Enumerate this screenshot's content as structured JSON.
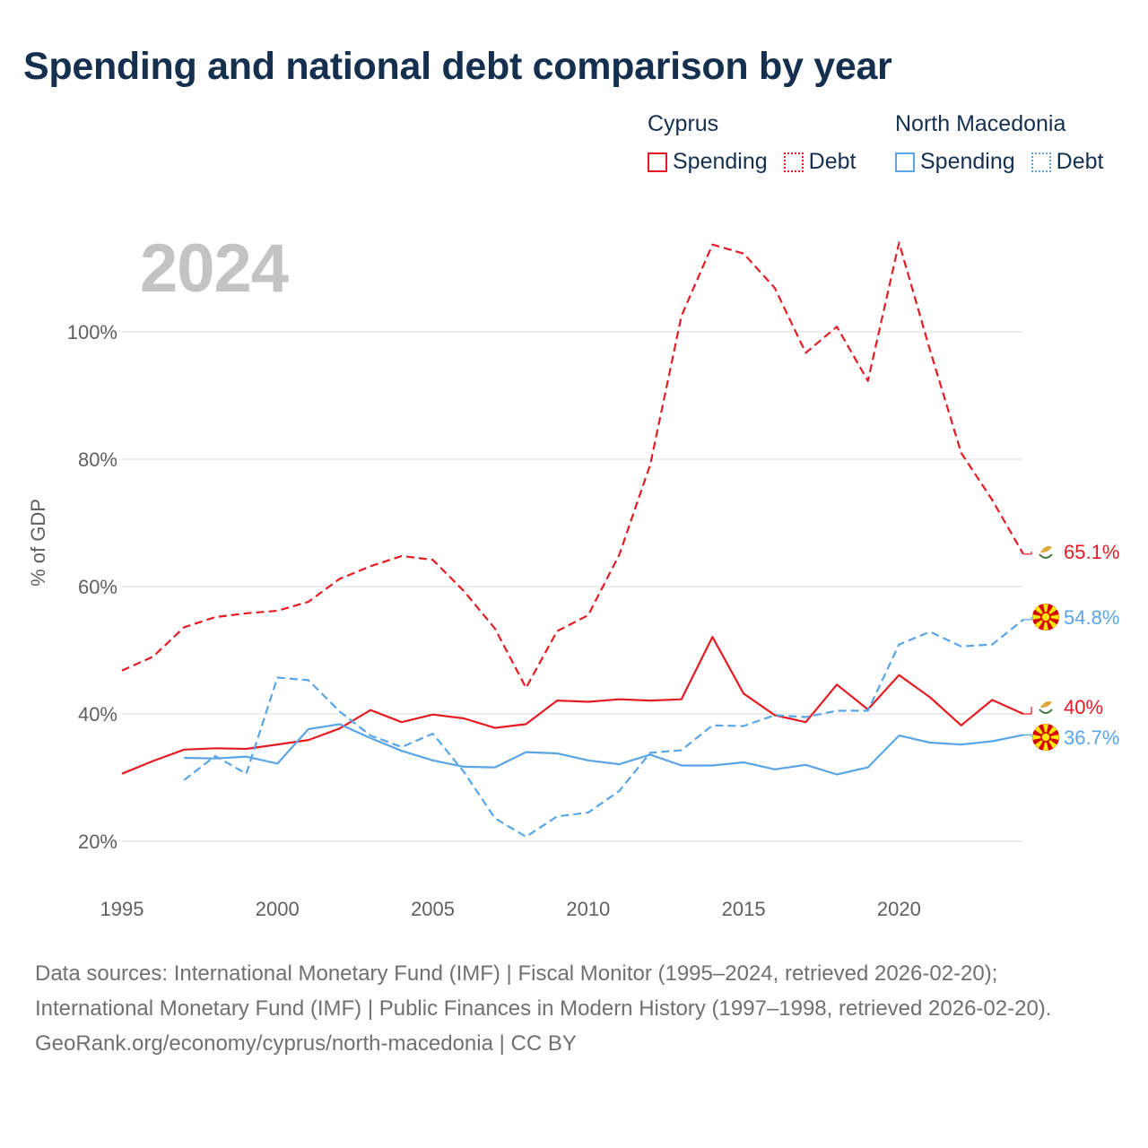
{
  "title": "Spending and national debt comparison by year",
  "year_label": "2024",
  "legend": [
    {
      "country": "Cyprus",
      "spending_label": "Spending",
      "debt_label": "Debt",
      "color": "#e31b23"
    },
    {
      "country": "North Macedonia",
      "spending_label": "Spending",
      "debt_label": "Debt",
      "color": "#5aa5e6"
    }
  ],
  "footer": {
    "sources": "Data sources: International Monetary Fund (IMF) | Fiscal Monitor (1995–2024, retrieved 2026-02-20); International Monetary Fund (IMF) | Public Finances in Modern History (1997–1998, retrieved 2026-02-20).",
    "credit": "GeoRank.org/economy/cyprus/north-macedonia | CC BY"
  },
  "chart_data": {
    "type": "line",
    "title": "Spending and national debt comparison by year",
    "xlabel": "",
    "ylabel": "% of GDP",
    "xlim": [
      1995,
      2024
    ],
    "ylim": [
      20,
      115
    ],
    "grid": true,
    "y_ticks": [
      {
        "value": 20,
        "label": "20%"
      },
      {
        "value": 40,
        "label": "40%"
      },
      {
        "value": 60,
        "label": "60%"
      },
      {
        "value": 80,
        "label": "80%"
      },
      {
        "value": 100,
        "label": "100%"
      }
    ],
    "x_ticks": [
      {
        "value": 1995,
        "label": "1995"
      },
      {
        "value": 2000,
        "label": "2000"
      },
      {
        "value": 2005,
        "label": "2005"
      },
      {
        "value": 2010,
        "label": "2010"
      },
      {
        "value": 2015,
        "label": "2015"
      },
      {
        "value": 2020,
        "label": "2020"
      }
    ],
    "series": [
      {
        "name": "Cyprus Debt",
        "country": "Cyprus",
        "color": "#e31b23",
        "dashed": true,
        "end_label": "65.1%",
        "end_icon": "cyprus-flag-icon",
        "x": [
          1995,
          1996,
          1997,
          1998,
          1999,
          2000,
          2001,
          2002,
          2003,
          2004,
          2005,
          2006,
          2007,
          2008,
          2009,
          2010,
          2011,
          2012,
          2013,
          2014,
          2015,
          2016,
          2017,
          2018,
          2019,
          2020,
          2021,
          2022,
          2023,
          2024
        ],
        "values": [
          46.8,
          49.0,
          53.6,
          55.2,
          55.8,
          56.2,
          57.6,
          61.2,
          63.2,
          64.8,
          64.2,
          59.3,
          53.4,
          44.1,
          53.0,
          55.5,
          65.0,
          79.2,
          102.5,
          113.7,
          112.3,
          106.9,
          96.7,
          100.8,
          92.3,
          114.0,
          97.1,
          81.0,
          73.6,
          65.1
        ]
      },
      {
        "name": "Cyprus Spending",
        "country": "Cyprus",
        "color": "#e31b23",
        "dashed": false,
        "end_label": "40%",
        "end_icon": "cyprus-flag-icon",
        "x": [
          1995,
          1996,
          1997,
          1998,
          1999,
          2000,
          2001,
          2002,
          2003,
          2004,
          2005,
          2006,
          2007,
          2008,
          2009,
          2010,
          2011,
          2012,
          2013,
          2014,
          2015,
          2016,
          2017,
          2018,
          2019,
          2020,
          2021,
          2022,
          2023,
          2024
        ],
        "values": [
          30.6,
          32.6,
          34.4,
          34.6,
          34.5,
          35.2,
          35.9,
          37.7,
          40.6,
          38.7,
          39.9,
          39.3,
          37.8,
          38.4,
          42.1,
          41.9,
          42.3,
          42.1,
          42.3,
          52.1,
          43.2,
          39.8,
          38.7,
          44.6,
          40.7,
          46.1,
          42.6,
          38.2,
          42.2,
          40.0
        ]
      },
      {
        "name": "North Macedonia Debt",
        "country": "North Macedonia",
        "color": "#5aa5e6",
        "dashed": true,
        "end_label": "54.8%",
        "end_icon": "north-macedonia-flag-icon",
        "x": [
          1997,
          1998,
          1999,
          2000,
          2001,
          2002,
          2003,
          2004,
          2005,
          2006,
          2007,
          2008,
          2009,
          2010,
          2011,
          2012,
          2013,
          2014,
          2015,
          2016,
          2017,
          2018,
          2019,
          2020,
          2021,
          2022,
          2023,
          2024
        ],
        "values": [
          29.6,
          33.4,
          30.6,
          45.7,
          45.3,
          40.4,
          36.6,
          34.8,
          36.9,
          30.9,
          23.6,
          20.7,
          23.9,
          24.5,
          27.9,
          33.9,
          34.3,
          38.2,
          38.1,
          39.8,
          39.5,
          40.5,
          40.5,
          50.9,
          52.9,
          50.6,
          50.9,
          54.8
        ]
      },
      {
        "name": "North Macedonia Spending",
        "country": "North Macedonia",
        "color": "#5aa5e6",
        "dashed": false,
        "end_label": "36.7%",
        "end_icon": "north-macedonia-flag-icon",
        "x": [
          1997,
          1998,
          1999,
          2000,
          2001,
          2002,
          2003,
          2004,
          2005,
          2006,
          2007,
          2008,
          2009,
          2010,
          2011,
          2012,
          2013,
          2014,
          2015,
          2016,
          2017,
          2018,
          2019,
          2020,
          2021,
          2022,
          2023,
          2024
        ],
        "values": [
          33.1,
          33.0,
          33.3,
          32.2,
          37.6,
          38.4,
          36.2,
          34.2,
          32.7,
          31.7,
          31.6,
          34.0,
          33.8,
          32.7,
          32.1,
          33.6,
          31.9,
          31.9,
          32.4,
          31.3,
          32.0,
          30.5,
          31.6,
          36.6,
          35.5,
          35.2,
          35.7,
          36.7
        ]
      }
    ]
  }
}
